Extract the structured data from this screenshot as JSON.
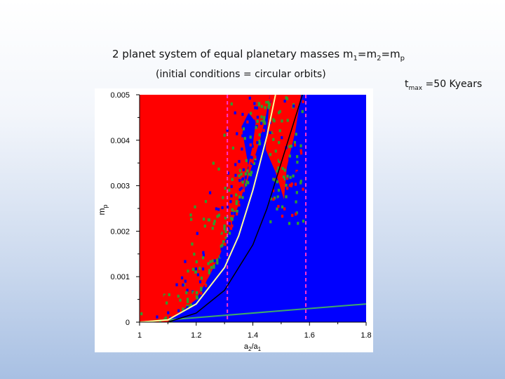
{
  "slide": {
    "title_prefix": "2 planet system of equal planetary masses m",
    "title_sub1": "1",
    "title_eq1": "=m",
    "title_sub2": "2",
    "title_eq2": "=m",
    "title_sub3": "p",
    "subtitle": "(initial conditions = circular orbits)",
    "tmax_t": "t",
    "tmax_sub": "max",
    "tmax_value": " =50 Kyears"
  },
  "chart_data": {
    "type": "heatmap",
    "title": "",
    "xlabel_main": "a",
    "xlabel_sub1": "2",
    "xlabel_slash": "/a",
    "xlabel_sub2": "1",
    "ylabel_main": "m",
    "ylabel_sub": "p",
    "xlim": [
      1.0,
      1.8
    ],
    "ylim": [
      0,
      0.005
    ],
    "x_ticks": [
      "1",
      "1.2",
      "1.4",
      "1.6",
      "1.8"
    ],
    "y_ticks": [
      "0",
      "0.001",
      "0.002",
      "0.003",
      "0.004",
      "0.005"
    ],
    "grid": false,
    "legend": "none",
    "colors": {
      "unstable": "#ff0000",
      "stable": "#0000ff",
      "intermediate": "#2e9e2e",
      "white_curve": "#ffff99",
      "black_curve": "#000000",
      "green_line": "#3fa86a",
      "resonance_lines": "#ff33cc"
    },
    "regions": {
      "unstable_left_of_x": [
        [
          0.0,
          1.1
        ],
        [
          0.0002,
          1.14
        ],
        [
          0.0005,
          1.2
        ],
        [
          0.001,
          1.245
        ],
        [
          0.0015,
          1.285
        ],
        [
          0.002,
          1.315
        ],
        [
          0.0025,
          1.345
        ],
        [
          0.003,
          1.375
        ],
        [
          0.0035,
          1.4
        ],
        [
          0.004,
          1.425
        ],
        [
          0.0045,
          1.445
        ],
        [
          0.005,
          1.46
        ]
      ],
      "stable_tongue": [
        [
          1.295,
          0.0005
        ],
        [
          1.33,
          0.0018
        ],
        [
          1.375,
          0.0032
        ],
        [
          1.4,
          0.0039
        ],
        [
          1.41,
          0.0044
        ],
        [
          1.385,
          0.0046
        ],
        [
          1.36,
          0.0043
        ],
        [
          1.385,
          0.0034
        ],
        [
          1.36,
          0.0027
        ],
        [
          1.34,
          0.0019
        ],
        [
          1.3,
          0.001
        ],
        [
          1.27,
          0.0006
        ]
      ]
    },
    "curves": {
      "white": [
        [
          1.0,
          0.0
        ],
        [
          1.1,
          5e-05
        ],
        [
          1.2,
          0.0004
        ],
        [
          1.3,
          0.0012
        ],
        [
          1.35,
          0.0019
        ],
        [
          1.4,
          0.0029
        ],
        [
          1.45,
          0.0041
        ],
        [
          1.48,
          0.005
        ]
      ],
      "black": [
        [
          1.1,
          0.0
        ],
        [
          1.2,
          0.0002
        ],
        [
          1.3,
          0.0007
        ],
        [
          1.4,
          0.0017
        ],
        [
          1.45,
          0.0025
        ],
        [
          1.5,
          0.0035
        ],
        [
          1.55,
          0.0045
        ],
        [
          1.58,
          0.0051
        ]
      ],
      "green": [
        [
          1.0,
          0.0
        ],
        [
          1.8,
          0.0004
        ]
      ]
    },
    "resonance_lines_x": [
      1.31,
      1.587
    ]
  }
}
